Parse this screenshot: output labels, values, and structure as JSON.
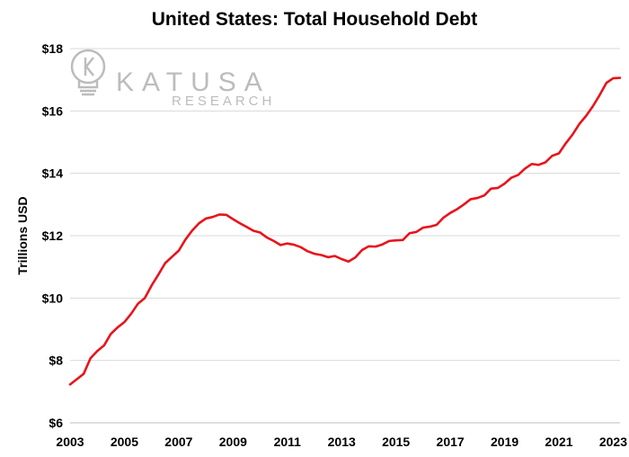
{
  "colors": {
    "line": "#e8141b",
    "grid": "#d9d9d9",
    "logo": "#bcbcbc"
  },
  "logo": {
    "icon": "lightbulb-k-icon",
    "word": "KATUSA",
    "sub": "RESEARCH"
  },
  "chart_data": {
    "type": "line",
    "title": "United States: Total Household Debt",
    "xlabel": "",
    "ylabel": "Trillions USD",
    "xlim": [
      2003,
      2023.25
    ],
    "ylim": [
      6,
      18
    ],
    "x_ticks": [
      "2003",
      "2005",
      "2007",
      "2009",
      "2011",
      "2013",
      "2015",
      "2017",
      "2019",
      "2021",
      "2023"
    ],
    "y_ticks": [
      "$6",
      "$8",
      "$10",
      "$12",
      "$14",
      "$16",
      "$18"
    ],
    "y_tick_values": [
      6,
      8,
      10,
      12,
      14,
      16,
      18
    ],
    "grid": true,
    "series": [
      {
        "name": "",
        "x": [
          2003.0,
          2003.25,
          2003.5,
          2003.75,
          2004.0,
          2004.25,
          2004.5,
          2004.75,
          2005.0,
          2005.25,
          2005.5,
          2005.75,
          2006.0,
          2006.25,
          2006.5,
          2006.75,
          2007.0,
          2007.25,
          2007.5,
          2007.75,
          2008.0,
          2008.25,
          2008.5,
          2008.75,
          2009.0,
          2009.25,
          2009.5,
          2009.75,
          2010.0,
          2010.25,
          2010.5,
          2010.75,
          2011.0,
          2011.25,
          2011.5,
          2011.75,
          2012.0,
          2012.25,
          2012.5,
          2012.75,
          2013.0,
          2013.25,
          2013.5,
          2013.75,
          2014.0,
          2014.25,
          2014.5,
          2014.75,
          2015.0,
          2015.25,
          2015.5,
          2015.75,
          2016.0,
          2016.25,
          2016.5,
          2016.75,
          2017.0,
          2017.25,
          2017.5,
          2017.75,
          2018.0,
          2018.25,
          2018.5,
          2018.75,
          2019.0,
          2019.25,
          2019.5,
          2019.75,
          2020.0,
          2020.25,
          2020.5,
          2020.75,
          2021.0,
          2021.25,
          2021.5,
          2021.75,
          2022.0,
          2022.25,
          2022.5,
          2022.75,
          2023.0,
          2023.25
        ],
        "values": [
          7.23,
          7.4,
          7.57,
          8.07,
          8.3,
          8.48,
          8.85,
          9.06,
          9.23,
          9.5,
          9.82,
          10.0,
          10.4,
          10.75,
          11.12,
          11.32,
          11.52,
          11.88,
          12.17,
          12.4,
          12.55,
          12.6,
          12.68,
          12.67,
          12.53,
          12.4,
          12.28,
          12.16,
          12.1,
          11.94,
          11.83,
          11.7,
          11.75,
          11.71,
          11.63,
          11.5,
          11.42,
          11.38,
          11.31,
          11.35,
          11.25,
          11.17,
          11.3,
          11.54,
          11.66,
          11.65,
          11.72,
          11.83,
          11.85,
          11.86,
          12.08,
          12.12,
          12.26,
          12.29,
          12.35,
          12.58,
          12.73,
          12.85,
          13.0,
          13.17,
          13.21,
          13.29,
          13.51,
          13.53,
          13.67,
          13.86,
          13.95,
          14.15,
          14.3,
          14.27,
          14.35,
          14.56,
          14.64,
          14.96,
          15.24,
          15.58,
          15.84,
          16.15,
          16.51,
          16.9,
          17.05,
          17.06
        ]
      }
    ]
  }
}
